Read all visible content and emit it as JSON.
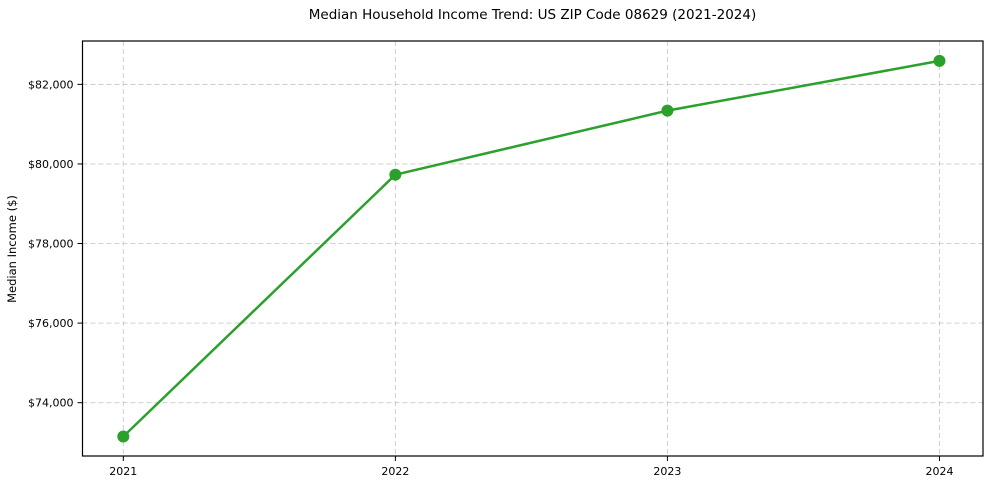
{
  "chart_data": {
    "type": "line",
    "title": "Median Household Income Trend: US ZIP Code 08629 (2021-2024)",
    "xlabel": "",
    "ylabel": "Median Income ($)",
    "x": [
      2021,
      2022,
      2023,
      2024
    ],
    "series": [
      {
        "name": "Median Household Income",
        "values": [
          73150,
          79730,
          81340,
          82590
        ]
      }
    ],
    "xtick_labels": [
      "2021",
      "2022",
      "2023",
      "2024"
    ],
    "yticks": [
      74000,
      76000,
      78000,
      80000,
      82000
    ],
    "ytick_labels": [
      "$74,000",
      "$76,000",
      "$78,000",
      "$80,000",
      "$82,000"
    ],
    "xlim": [
      2020.85,
      2024.16
    ],
    "ylim": [
      72660,
      83090
    ],
    "grid": true,
    "legend_position": "none",
    "colors": {
      "line": "#2ca02c",
      "marker": "#2ca02c",
      "grid": "#c9c9c9",
      "spine": "#000000",
      "text": "#000000",
      "background": "#ffffff"
    },
    "line_width": 2.5,
    "marker_style": "circle",
    "marker_radius": 6
  }
}
